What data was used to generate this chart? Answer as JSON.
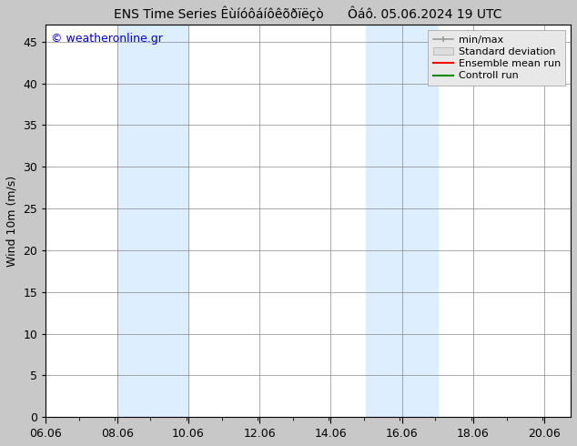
{
  "title": "ENS Time Series Êùíóôáíôêõðïëçò      Ôáô. 05.06.2024 19 UTC",
  "ylabel": "Wind 10m (m/s)",
  "watermark": "© weatheronline.gr",
  "watermark_color": "#0000dd",
  "figure_bg_color": "#c8c8c8",
  "plot_bg_color": "#ffffff",
  "shaded_bands": [
    {
      "x_start": 8.06,
      "x_end": 10.06,
      "color": "#ddeeff"
    },
    {
      "x_start": 15.06,
      "x_end": 17.06,
      "color": "#ddeeff"
    }
  ],
  "x_ticks": [
    6.06,
    8.06,
    10.06,
    12.06,
    14.06,
    16.06,
    18.06,
    20.06
  ],
  "x_tick_labels": [
    "06.06",
    "08.06",
    "10.06",
    "12.06",
    "14.06",
    "16.06",
    "18.06",
    "20.06"
  ],
  "xlim": [
    6.06,
    20.8
  ],
  "ylim": [
    0,
    47
  ],
  "y_ticks": [
    0,
    5,
    10,
    15,
    20,
    25,
    30,
    35,
    40,
    45
  ],
  "grid_color": "#888888",
  "legend_items": [
    {
      "label": "min/max",
      "color": "#999999",
      "style": "minmax"
    },
    {
      "label": "Standard deviation",
      "color": "#cccccc",
      "style": "stddev"
    },
    {
      "label": "Ensemble mean run",
      "color": "#ff0000",
      "style": "line"
    },
    {
      "label": "Controll run",
      "color": "#008800",
      "style": "line"
    }
  ],
  "title_fontsize": 10,
  "axis_label_fontsize": 9,
  "tick_fontsize": 9,
  "legend_fontsize": 8,
  "watermark_fontsize": 9
}
